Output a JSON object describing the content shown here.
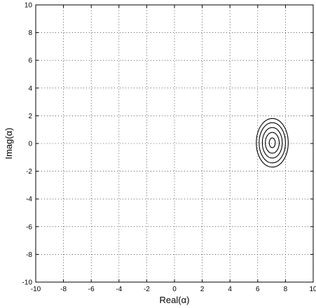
{
  "chart_data": {
    "type": "contour",
    "xlabel": "Real(α)",
    "ylabel": "Imag(α)",
    "xlim": [
      -10,
      10
    ],
    "ylim": [
      -10,
      10
    ],
    "xticks": [
      -10,
      -8,
      -6,
      -4,
      -2,
      0,
      2,
      4,
      6,
      8,
      10
    ],
    "yticks": [
      -10,
      -8,
      -6,
      -4,
      -2,
      0,
      2,
      4,
      6,
      8,
      10
    ],
    "grid": true,
    "grid_style": "dotted",
    "contours": {
      "center": [
        7.05,
        0.05
      ],
      "levels": [
        {
          "rx": 1.15,
          "ry": 1.75
        },
        {
          "rx": 0.95,
          "ry": 1.45
        },
        {
          "rx": 0.72,
          "ry": 1.1
        },
        {
          "rx": 0.5,
          "ry": 0.75
        },
        {
          "rx": 0.22,
          "ry": 0.35
        }
      ]
    },
    "line_color": "#000000"
  }
}
